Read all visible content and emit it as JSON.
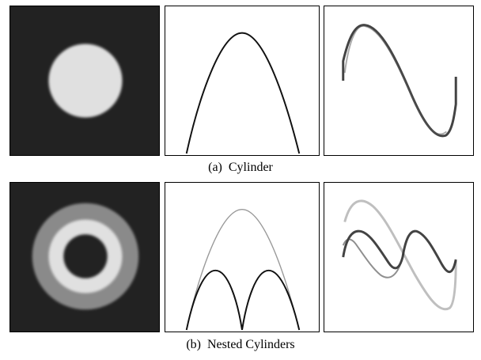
{
  "figure": {
    "rows": [
      {
        "id": "a",
        "label": "(a)",
        "name": "Cylinder"
      },
      {
        "id": "b",
        "label": "(b)",
        "name": "Nested Cylinders"
      }
    ]
  },
  "colors": {
    "background_dark": "#222222",
    "disk_light": "#e0e0e0",
    "ring_gray": "#8a8a8a",
    "curve_dark": "#111111",
    "curve_light": "#9a9a9a"
  }
}
